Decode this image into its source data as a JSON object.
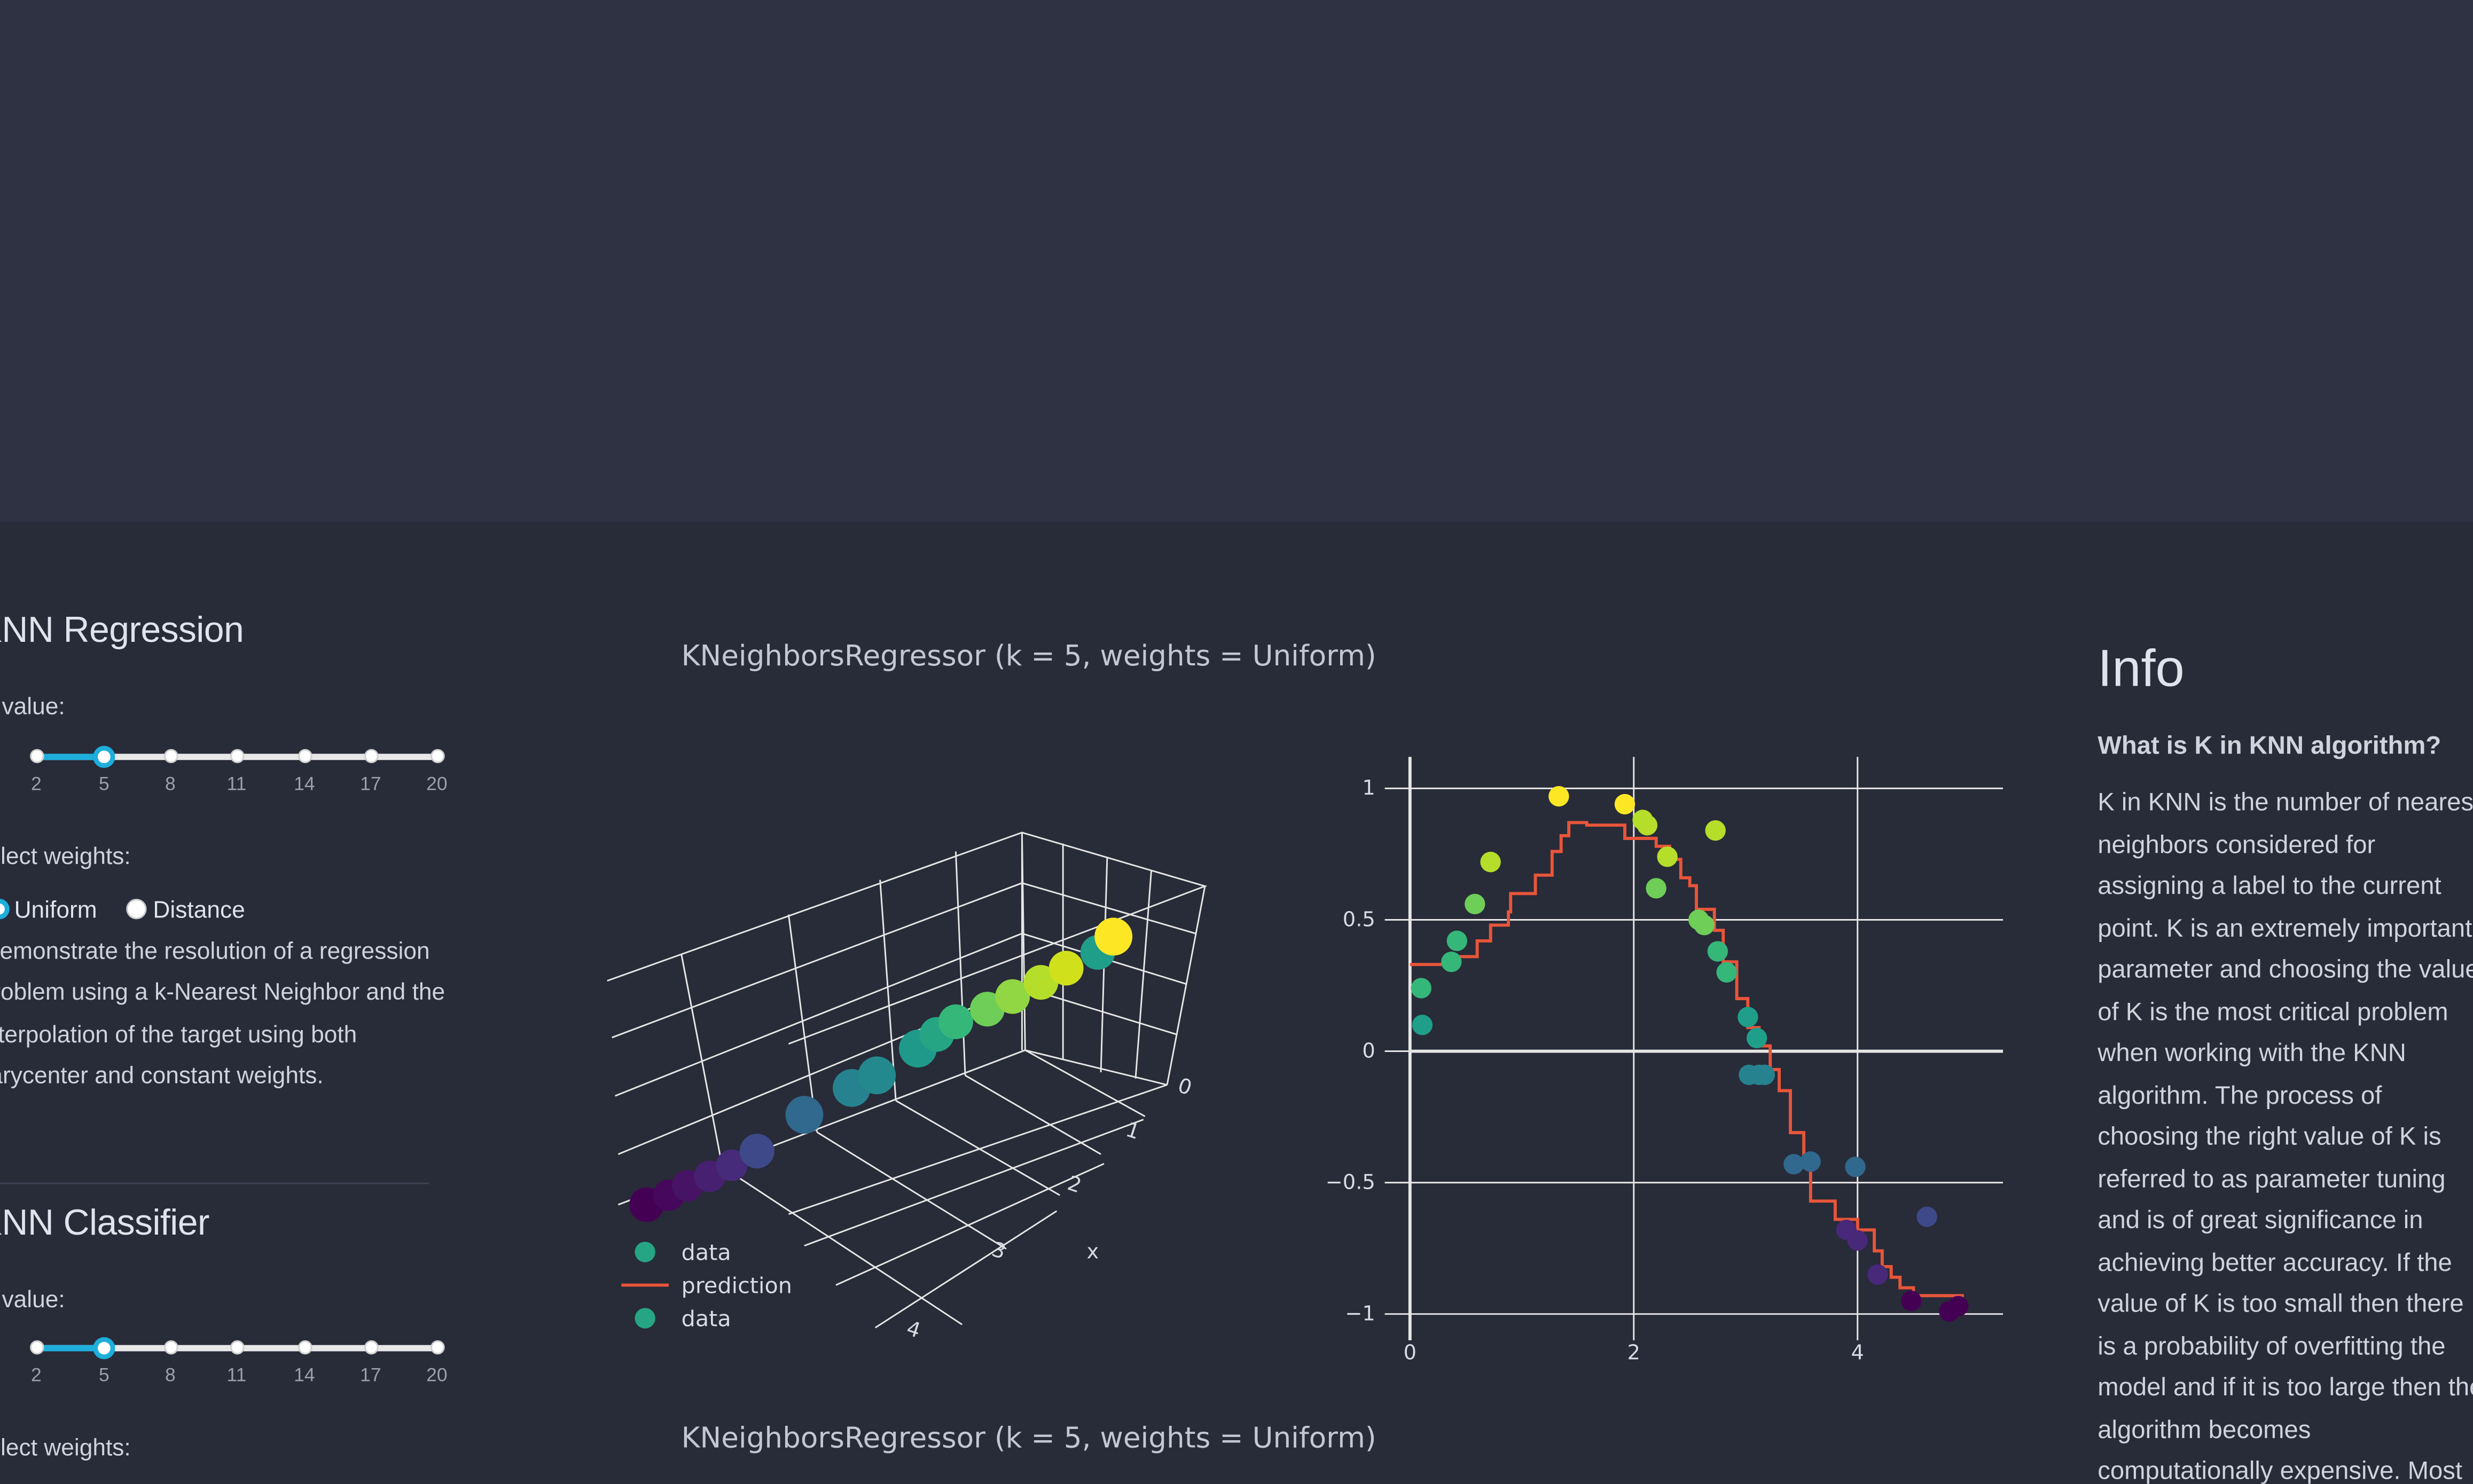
{
  "regression": {
    "title": "KNN Regression",
    "k_label": "K value:",
    "k_marks": [
      "2",
      "5",
      "8",
      "11",
      "14",
      "17",
      "20"
    ],
    "k_value": 5,
    "weights_label": "Select weights:",
    "weights_options": [
      "Uniform",
      "Distance"
    ],
    "weights_selected": "Uniform",
    "description": [
      "Demonstrate the resolution of a regression",
      "problem using a k-Nearest Neighbor and the",
      "interpolation of the target using both",
      "barycenter and constant weights."
    ]
  },
  "classifier": {
    "title": "KNN Classifier",
    "k_label": "K value:",
    "k_marks": [
      "2",
      "5",
      "8",
      "11",
      "14",
      "17",
      "20"
    ],
    "k_value": 5,
    "weights_label": "Select weights:"
  },
  "plots": {
    "title_top": "KNeighborsRegressor (k = 5, weights = Uniform)",
    "title_bottom": "KNeighborsRegressor (k = 5, weights = Uniform)",
    "legend": [
      "data",
      "prediction",
      "data"
    ],
    "axis3d": {
      "x_title": "x",
      "x_ticks": [
        "0",
        "1",
        "2",
        "3",
        "4"
      ]
    }
  },
  "colors": {
    "accent": "#1eaedb",
    "prediction_line": "#e8553a",
    "background": "#282b38",
    "banner": "#2f3243"
  },
  "chart_data": {
    "type": "scatter",
    "x_ticks": [
      "0",
      "2",
      "4"
    ],
    "y_ticks": [
      "1",
      "0.5",
      "0",
      "−0.5",
      "−1"
    ],
    "xlim": [
      0,
      5.3
    ],
    "ylim": [
      -1.1,
      1.12
    ],
    "series": [
      {
        "name": "data",
        "mode": "markers",
        "colorscale": "Viridis",
        "points": [
          [
            0.1,
            0.24
          ],
          [
            0.11,
            0.1
          ],
          [
            0.37,
            0.34
          ],
          [
            0.42,
            0.42
          ],
          [
            0.58,
            0.56
          ],
          [
            0.72,
            0.72
          ],
          [
            1.33,
            0.97
          ],
          [
            1.92,
            0.94
          ],
          [
            2.08,
            0.88
          ],
          [
            2.12,
            0.86
          ],
          [
            2.2,
            0.62
          ],
          [
            2.3,
            0.74
          ],
          [
            2.58,
            0.5
          ],
          [
            2.63,
            0.48
          ],
          [
            2.73,
            0.84
          ],
          [
            2.75,
            0.38
          ],
          [
            2.83,
            0.3
          ],
          [
            3.02,
            0.13
          ],
          [
            3.1,
            0.05
          ],
          [
            3.03,
            -0.09
          ],
          [
            3.12,
            -0.09
          ],
          [
            3.17,
            -0.09
          ],
          [
            3.43,
            -0.43
          ],
          [
            3.58,
            -0.42
          ],
          [
            3.98,
            -0.44
          ],
          [
            3.9,
            -0.68
          ],
          [
            4.0,
            -0.72
          ],
          [
            4.18,
            -0.85
          ],
          [
            4.48,
            -0.95
          ],
          [
            4.62,
            -0.63
          ],
          [
            4.82,
            -0.99
          ],
          [
            4.9,
            -0.97
          ]
        ]
      },
      {
        "name": "prediction",
        "mode": "lines",
        "shape": "step",
        "points": [
          [
            0.0,
            0.33
          ],
          [
            0.35,
            0.33
          ],
          [
            0.35,
            0.36
          ],
          [
            0.6,
            0.36
          ],
          [
            0.6,
            0.42
          ],
          [
            0.72,
            0.42
          ],
          [
            0.72,
            0.48
          ],
          [
            0.88,
            0.48
          ],
          [
            0.88,
            0.53
          ],
          [
            0.9,
            0.53
          ],
          [
            0.9,
            0.6
          ],
          [
            1.12,
            0.6
          ],
          [
            1.12,
            0.67
          ],
          [
            1.27,
            0.67
          ],
          [
            1.27,
            0.76
          ],
          [
            1.35,
            0.76
          ],
          [
            1.35,
            0.82
          ],
          [
            1.42,
            0.82
          ],
          [
            1.42,
            0.87
          ],
          [
            1.58,
            0.87
          ],
          [
            1.58,
            0.86
          ],
          [
            1.92,
            0.86
          ],
          [
            1.92,
            0.81
          ],
          [
            2.2,
            0.81
          ],
          [
            2.2,
            0.78
          ],
          [
            2.32,
            0.78
          ],
          [
            2.32,
            0.73
          ],
          [
            2.42,
            0.73
          ],
          [
            2.42,
            0.66
          ],
          [
            2.5,
            0.66
          ],
          [
            2.5,
            0.63
          ],
          [
            2.56,
            0.63
          ],
          [
            2.56,
            0.54
          ],
          [
            2.72,
            0.54
          ],
          [
            2.72,
            0.46
          ],
          [
            2.8,
            0.46
          ],
          [
            2.8,
            0.34
          ],
          [
            2.92,
            0.34
          ],
          [
            2.92,
            0.2
          ],
          [
            3.02,
            0.2
          ],
          [
            3.02,
            0.09
          ],
          [
            3.12,
            0.09
          ],
          [
            3.12,
            0.02
          ],
          [
            3.22,
            0.02
          ],
          [
            3.22,
            -0.07
          ],
          [
            3.3,
            -0.07
          ],
          [
            3.3,
            -0.15
          ],
          [
            3.4,
            -0.15
          ],
          [
            3.4,
            -0.31
          ],
          [
            3.52,
            -0.31
          ],
          [
            3.52,
            -0.43
          ],
          [
            3.58,
            -0.43
          ],
          [
            3.58,
            -0.57
          ],
          [
            3.8,
            -0.57
          ],
          [
            3.8,
            -0.64
          ],
          [
            4.0,
            -0.64
          ],
          [
            4.0,
            -0.68
          ],
          [
            4.15,
            -0.68
          ],
          [
            4.15,
            -0.76
          ],
          [
            4.22,
            -0.76
          ],
          [
            4.22,
            -0.82
          ],
          [
            4.3,
            -0.82
          ],
          [
            4.3,
            -0.86
          ],
          [
            4.38,
            -0.86
          ],
          [
            4.38,
            -0.9
          ],
          [
            4.5,
            -0.9
          ],
          [
            4.5,
            -0.93
          ],
          [
            4.95,
            -0.93
          ]
        ]
      }
    ]
  }
}
